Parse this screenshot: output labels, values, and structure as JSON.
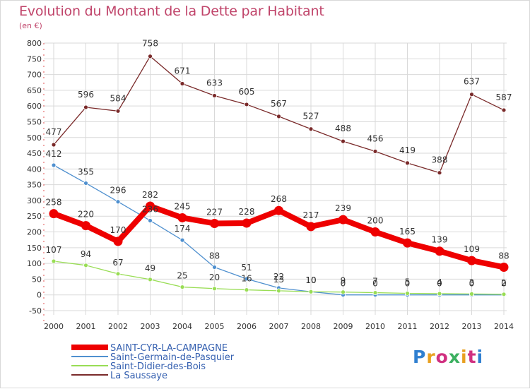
{
  "title": "Evolution du Montant de la Dette par Habitant",
  "subtitle": "(en €)",
  "logo_text": "Proxiti",
  "chart_data": {
    "type": "line",
    "title": "Evolution du Montant de la Dette par Habitant",
    "subtitle": "(en €)",
    "x": [
      "2000",
      "2001",
      "2002",
      "2003",
      "2004",
      "2005",
      "2006",
      "2007",
      "2008",
      "2009",
      "2010",
      "2011",
      "2012",
      "2013",
      "2014"
    ],
    "ylim": [
      -50,
      800
    ],
    "yticks": [
      "-50",
      "0",
      "50",
      "100",
      "150",
      "200",
      "250",
      "300",
      "350",
      "400",
      "450",
      "500",
      "550",
      "600",
      "650",
      "700",
      "750",
      "800"
    ],
    "grid": true,
    "legend_position": "bottom-left",
    "series": [
      {
        "name": "SAINT-CYR-LA-CAMPAGNE",
        "color": "#ee0000",
        "values": [
          258,
          220,
          170,
          282,
          245,
          227,
          228,
          268,
          217,
          239,
          200,
          165,
          139,
          109,
          88
        ],
        "labels": [
          "258",
          "220",
          "170",
          "282",
          "245",
          "227",
          "228",
          "268",
          "217",
          "239",
          "200",
          "165",
          "139",
          "109",
          "88"
        ]
      },
      {
        "name": "Saint-Germain-de-Pasquier",
        "color": "#4f90cf",
        "values": [
          412,
          355,
          296,
          236,
          174,
          88,
          51,
          22,
          10,
          0,
          0,
          0,
          0,
          0,
          0
        ],
        "labels": [
          "412",
          "355",
          "296",
          "236",
          "174",
          "88",
          "51",
          "22",
          "10",
          "0",
          "0",
          "0",
          "0",
          "0",
          "0"
        ]
      },
      {
        "name": "Saint-Didier-des-Bois",
        "color": "#99dd55",
        "values": [
          107,
          94,
          67,
          49,
          25,
          20,
          16,
          13,
          10,
          9,
          7,
          5,
          4,
          3,
          2
        ],
        "labels": [
          "107",
          "94",
          "67",
          "49",
          "25",
          "20",
          "16",
          "13",
          "10",
          "9",
          "7",
          "5",
          "4",
          "3",
          "2"
        ]
      },
      {
        "name": "La Saussaye",
        "color": "#7a2a2a",
        "values": [
          477,
          596,
          584,
          758,
          671,
          633,
          605,
          567,
          527,
          488,
          456,
          419,
          388,
          637,
          587
        ],
        "labels": [
          "477",
          "596",
          "584",
          "758",
          "671",
          "633",
          "605",
          "567",
          "527",
          "488",
          "456",
          "419",
          "388",
          "637",
          "587"
        ]
      }
    ]
  }
}
